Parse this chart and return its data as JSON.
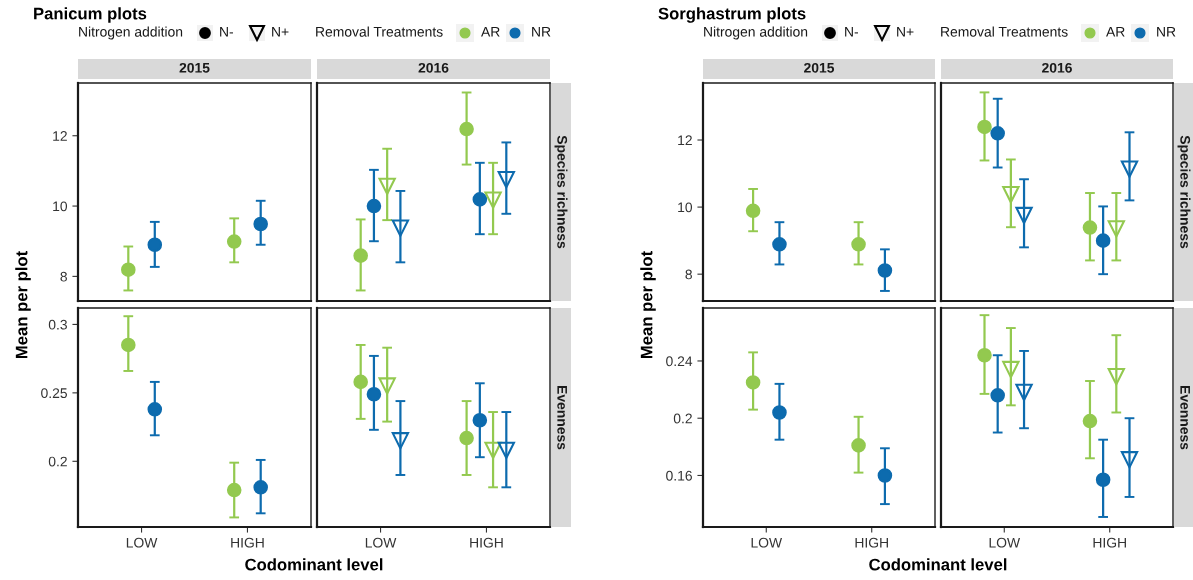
{
  "chart_data": [
    {
      "type": "scatter",
      "subtitle": "Panicum plots",
      "title": "2015",
      "ylabel": "Mean per plot",
      "legend": "top",
      "legend_title": "Nitrogen addition",
      "annotations": [
        "N-",
        "N+"
      ],
      "categories": [
        "LOW",
        "HIGH"
      ],
      "ylim": [
        7.3,
        13.5
      ],
      "yticks": [
        8,
        10,
        12
      ],
      "tick_labels": "y",
      "grid": false,
      "series": [
        {
          "name": "AR",
          "color": "#93c94f",
          "marker": "circle",
          "values": [
            8.19,
            8.99
          ],
          "errors": [
            [
              7.6,
              8.85
            ],
            [
              8.4,
              9.65
            ]
          ]
        },
        {
          "name": "NR",
          "color": "#0d6bae",
          "marker": "circle",
          "values": [
            8.9,
            9.49
          ],
          "errors": [
            [
              8.27,
              9.55
            ],
            [
              8.9,
              10.15
            ]
          ]
        }
      ]
    },
    {
      "type": "scatter",
      "title": "2016",
      "legend": "top",
      "legend_title": "Removal Treatments",
      "annotations": [
        "Species richness"
      ],
      "categories": [
        "LOW",
        "HIGH"
      ],
      "ylim": [
        7.3,
        13.5
      ],
      "yticks": [
        8,
        10,
        12
      ],
      "tick_labels": false,
      "grid": false,
      "series": [
        {
          "name": "AR",
          "color": "#93c94f",
          "marker": "circle",
          "values": [
            8.59,
            12.19
          ],
          "errors": [
            [
              7.6,
              9.62
            ],
            [
              11.18,
              13.23
            ]
          ]
        },
        {
          "name": "NR",
          "color": "#0d6bae",
          "marker": "circle",
          "values": [
            10.0,
            10.19
          ],
          "errors": [
            [
              9.0,
              11.03
            ],
            [
              9.2,
              11.23
            ]
          ]
        },
        {
          "color": "#93c94f",
          "marker": "triangle",
          "values": [
            10.56,
            10.17
          ],
          "errors": [
            [
              9.6,
              11.63
            ],
            [
              9.2,
              11.23
            ]
          ]
        },
        {
          "color": "#0d6bae",
          "marker": "triangle",
          "values": [
            9.37,
            10.75
          ],
          "errors": [
            [
              8.4,
              10.43
            ],
            [
              9.78,
              11.81
            ]
          ]
        }
      ]
    },
    {
      "type": "scatter",
      "xlabel": "Codominant level",
      "categories": [
        "LOW",
        "HIGH"
      ],
      "ylim": [
        0.152,
        0.312
      ],
      "yticks": [
        0.2,
        0.25,
        0.3
      ],
      "grid": false,
      "series": [
        {
          "name": "AR",
          "color": "#93c94f",
          "marker": "circle",
          "values": [
            0.285,
            0.179
          ],
          "errors": [
            [
              0.266,
              0.306
            ],
            [
              0.159,
              0.199
            ]
          ]
        },
        {
          "name": "NR",
          "color": "#0d6bae",
          "marker": "circle",
          "values": [
            0.238,
            0.181
          ],
          "errors": [
            [
              0.219,
              0.258
            ],
            [
              0.162,
              0.201
            ]
          ]
        }
      ]
    },
    {
      "type": "scatter",
      "annotations": [
        "Evenness"
      ],
      "categories": [
        "LOW",
        "HIGH"
      ],
      "ylim": [
        0.152,
        0.312
      ],
      "yticks": [
        0.2,
        0.25,
        0.3
      ],
      "tick_labels": "x",
      "grid": false,
      "series": [
        {
          "name": "AR",
          "color": "#93c94f",
          "marker": "circle",
          "values": [
            0.258,
            0.217
          ],
          "errors": [
            [
              0.231,
              0.285
            ],
            [
              0.19,
              0.244
            ]
          ]
        },
        {
          "name": "NR",
          "color": "#0d6bae",
          "marker": "circle",
          "values": [
            0.249,
            0.23
          ],
          "errors": [
            [
              0.223,
              0.277
            ],
            [
              0.203,
              0.257
            ]
          ]
        },
        {
          "color": "#93c94f",
          "marker": "triangle",
          "values": [
            0.255,
            0.208
          ],
          "errors": [
            [
              0.229,
              0.283
            ],
            [
              0.181,
              0.236
            ]
          ]
        },
        {
          "color": "#0d6bae",
          "marker": "triangle",
          "values": [
            0.215,
            0.208
          ],
          "errors": [
            [
              0.19,
              0.244
            ],
            [
              0.181,
              0.236
            ]
          ]
        }
      ]
    },
    {
      "type": "scatter",
      "subtitle": "Sorghastrum plots",
      "title": "2015",
      "ylabel": "Mean per plot",
      "legend": "top",
      "legend_title": "Nitrogen addition",
      "annotations": [
        "N-",
        "N+"
      ],
      "categories": [
        "LOW",
        "HIGH"
      ],
      "ylim": [
        7.2,
        13.7
      ],
      "yticks": [
        8,
        10,
        12
      ],
      "tick_labels": "y",
      "grid": false,
      "series": [
        {
          "name": "AR",
          "color": "#93c94f",
          "marker": "circle",
          "values": [
            9.89,
            8.89
          ],
          "errors": [
            [
              9.28,
              10.54
            ],
            [
              8.29,
              9.55
            ]
          ]
        },
        {
          "name": "NR",
          "color": "#0d6bae",
          "marker": "circle",
          "values": [
            8.89,
            8.11
          ],
          "errors": [
            [
              8.29,
              9.55
            ],
            [
              7.5,
              8.74
            ]
          ]
        }
      ]
    },
    {
      "type": "scatter",
      "title": "2016",
      "legend": "top",
      "legend_title": "Removal Treatments",
      "annotations": [
        "Species richness"
      ],
      "categories": [
        "LOW",
        "HIGH"
      ],
      "ylim": [
        7.2,
        13.7
      ],
      "yticks": [
        8,
        10,
        12
      ],
      "tick_labels": false,
      "grid": false,
      "series": [
        {
          "name": "AR",
          "color": "#93c94f",
          "marker": "circle",
          "values": [
            12.39,
            9.39
          ],
          "errors": [
            [
              11.39,
              13.42
            ],
            [
              8.41,
              10.42
            ]
          ]
        },
        {
          "name": "NR",
          "color": "#0d6bae",
          "marker": "circle",
          "values": [
            12.2,
            9.0
          ],
          "errors": [
            [
              11.18,
              13.23
            ],
            [
              8.0,
              10.02
            ]
          ]
        },
        {
          "color": "#93c94f",
          "marker": "triangle",
          "values": [
            10.37,
            9.35
          ],
          "errors": [
            [
              9.4,
              11.42
            ],
            [
              8.41,
              10.42
            ]
          ]
        },
        {
          "color": "#0d6bae",
          "marker": "triangle",
          "values": [
            9.75,
            11.13
          ],
          "errors": [
            [
              8.8,
              10.83
            ],
            [
              10.2,
              12.23
            ]
          ]
        }
      ]
    },
    {
      "type": "scatter",
      "xlabel": "Codominant level",
      "categories": [
        "LOW",
        "HIGH"
      ],
      "ylim": [
        0.124,
        0.277
      ],
      "yticks": [
        0.16,
        0.2,
        0.24
      ],
      "grid": false,
      "series": [
        {
          "name": "AR",
          "color": "#93c94f",
          "marker": "circle",
          "values": [
            0.225,
            0.181
          ],
          "errors": [
            [
              0.206,
              0.246
            ],
            [
              0.162,
              0.201
            ]
          ]
        },
        {
          "name": "NR",
          "color": "#0d6bae",
          "marker": "circle",
          "values": [
            0.204,
            0.16
          ],
          "errors": [
            [
              0.185,
              0.224
            ],
            [
              0.14,
              0.179
            ]
          ]
        }
      ]
    },
    {
      "type": "scatter",
      "annotations": [
        "Evenness"
      ],
      "categories": [
        "LOW",
        "HIGH"
      ],
      "ylim": [
        0.124,
        0.277
      ],
      "yticks": [
        0.16,
        0.2,
        0.24
      ],
      "tick_labels": "x",
      "grid": false,
      "series": [
        {
          "name": "AR",
          "color": "#93c94f",
          "marker": "circle",
          "values": [
            0.244,
            0.198
          ],
          "errors": [
            [
              0.217,
              0.272
            ],
            [
              0.172,
              0.226
            ]
          ]
        },
        {
          "name": "NR",
          "color": "#0d6bae",
          "marker": "circle",
          "values": [
            0.216,
            0.157
          ],
          "errors": [
            [
              0.19,
              0.244
            ],
            [
              0.131,
              0.185
            ]
          ]
        },
        {
          "color": "#93c94f",
          "marker": "triangle",
          "values": [
            0.234,
            0.229
          ],
          "errors": [
            [
              0.209,
              0.263
            ],
            [
              0.204,
              0.258
            ]
          ]
        },
        {
          "color": "#0d6bae",
          "marker": "triangle",
          "values": [
            0.218,
            0.171
          ],
          "errors": [
            [
              0.193,
              0.247
            ],
            [
              0.145,
              0.2
            ]
          ]
        }
      ]
    }
  ]
}
